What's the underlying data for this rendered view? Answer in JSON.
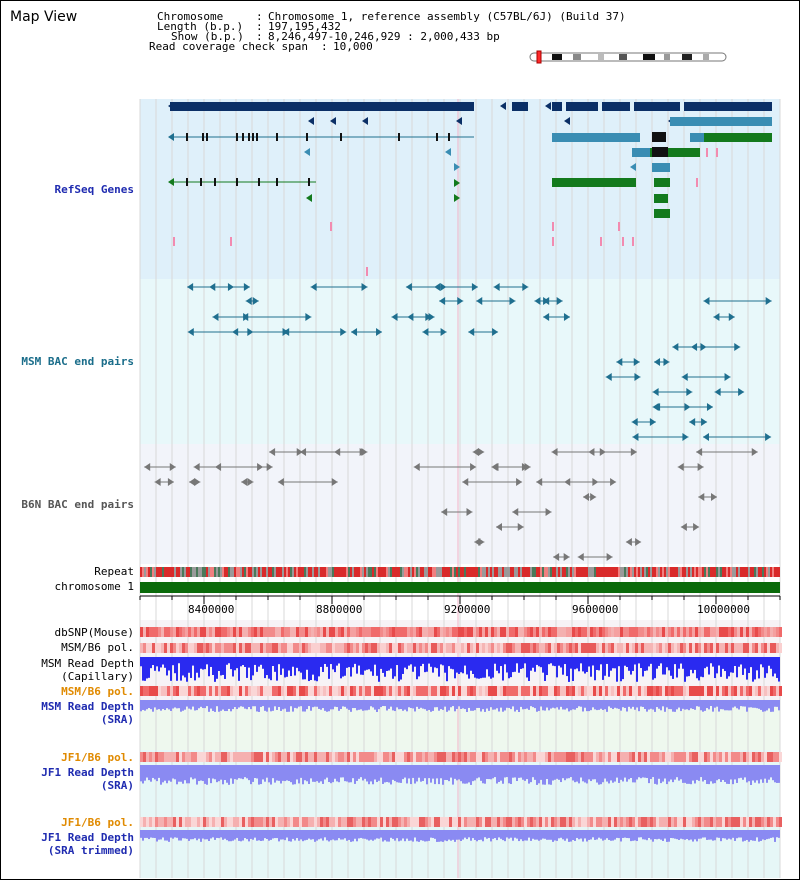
{
  "window": {
    "title": "Map View"
  },
  "info": {
    "chromosome_key": "Chromosome",
    "chromosome_val": "Chromosome 1, reference assembly (C57BL/6J) (Build 37)",
    "length_key": "Length (b.p.)",
    "length_val": "197,195,432",
    "show_key": "Show (b.p.)",
    "show_val": "8,246,497-10,246,929 : 2,000,433 bp",
    "coverage_key": "Read coverage check span",
    "coverage_val": "10,000"
  },
  "tracks": {
    "refseq": "RefSeq Genes",
    "msm_bac": "MSM BAC end pairs",
    "b6n_bac": "B6N BAC end pairs",
    "repeat": "Repeat",
    "chromosome": "chromosome 1",
    "dbsnp": "dbSNP(Mouse)",
    "msm_b6_pol": "MSM/B6 pol.",
    "msm_read_depth_cap_1": "MSM Read Depth",
    "msm_read_depth_cap_2": "(Capillary)",
    "msm_b6_pol2": "MSM/B6 pol.",
    "msm_read_depth_sra_1": "MSM Read Depth",
    "msm_read_depth_sra_2": "(SRA)",
    "jf1_b6_pol": "JF1/B6 pol.",
    "jf1_read_depth_sra_1": "JF1 Read Depth",
    "jf1_read_depth_sra_2": "(SRA)",
    "jf1_b6_pol2": "JF1/B6 pol.",
    "jf1_read_depth_trim_1": "JF1 Read Depth",
    "jf1_read_depth_trim_2": "(SRA trimmed)"
  },
  "axis": {
    "ticks": [
      "8400000",
      "8800000",
      "9200000",
      "9600000",
      "10000000"
    ]
  },
  "colors": {
    "refseq_bg": "#dff0fa",
    "bac_bg": "#e8f8fa",
    "b6n_bg": "#f2f4fa",
    "gene_navy": "#0b2f66",
    "gene_teal": "#3a8db3",
    "gene_green": "#137a1d",
    "bac_teal": "#1f6f8f",
    "chromosome_green": "#0a6a0a",
    "depth_blue": "#2a2af0",
    "depth_light": "#8a8af2",
    "snp_red": "#e83a3a"
  }
}
